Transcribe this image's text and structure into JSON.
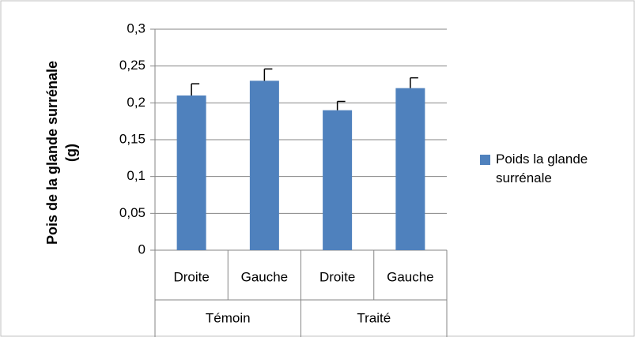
{
  "chart_data": {
    "type": "bar",
    "y_label": [
      "Pois de la glande surrénale",
      "(g)"
    ],
    "categories": [
      "Droite",
      "Gauche",
      "Droite",
      "Gauche"
    ],
    "groups": [
      "Témoin",
      "Traité"
    ],
    "series": [
      {
        "name": "Poids la glande surrénale",
        "color": "#4f81bd",
        "values": [
          0.21,
          0.23,
          0.19,
          0.22
        ],
        "errors": [
          0.016,
          0.016,
          0.012,
          0.014
        ]
      }
    ],
    "ylim": [
      0,
      0.3
    ],
    "yticks": [
      0,
      {
        "value": 0.05,
        "label": "0,05"
      },
      {
        "value": 0.1,
        "label": "0,1"
      },
      {
        "value": 0.15,
        "label": "0,15"
      },
      {
        "value": 0.2,
        "label": "0,2"
      },
      {
        "value": 0.25,
        "label": "0,25"
      },
      {
        "value": 0.3,
        "label": "0,3"
      }
    ],
    "grid": true,
    "legend": "right"
  }
}
